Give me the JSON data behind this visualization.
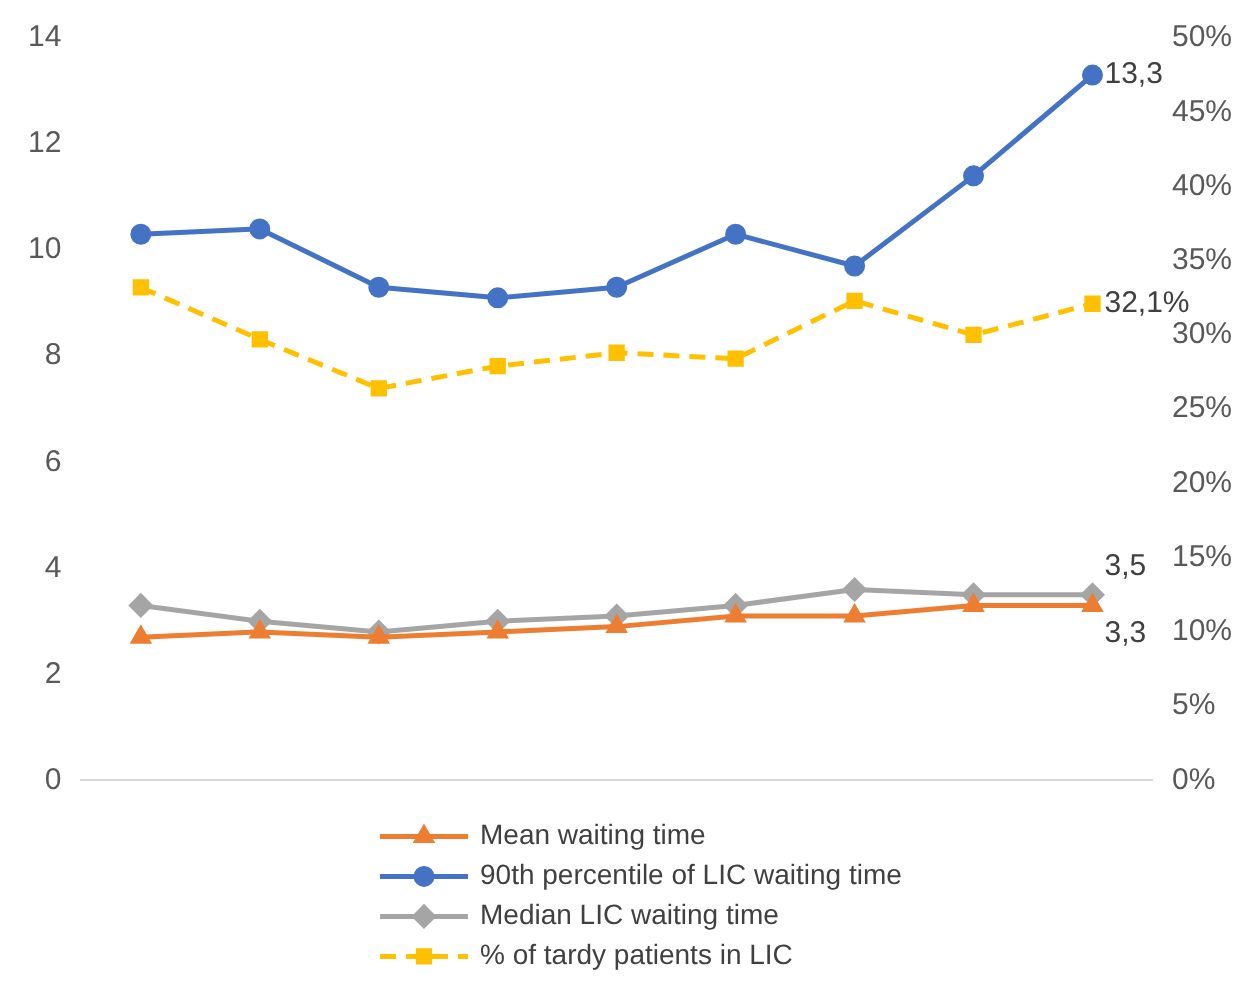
{
  "chart_data": {
    "type": "line",
    "categories": [
      null,
      null,
      null,
      null,
      null,
      null,
      null,
      null,
      null
    ],
    "series": [
      {
        "name": "Mean waiting time",
        "color": "#ed7d31",
        "marker": "triangle",
        "values": [
          2.7,
          2.8,
          2.7,
          2.8,
          2.9,
          3.1,
          3.1,
          3.3,
          3.3
        ],
        "value_labels": [
          null,
          null,
          null,
          null,
          null,
          null,
          null,
          null,
          "3,3"
        ]
      },
      {
        "name": "90th percentile of LIC waiting time",
        "color": "#4472c4",
        "marker": "circle",
        "values": [
          10.3,
          10.4,
          9.3,
          9.1,
          9.3,
          10.3,
          9.7,
          11.4,
          13.3
        ],
        "value_labels": [
          null,
          null,
          null,
          null,
          null,
          null,
          null,
          null,
          "13,3"
        ]
      },
      {
        "name": "Median LIC waiting time",
        "color": "#a5a5a5",
        "marker": "diamond",
        "values": [
          3.3,
          3.0,
          2.8,
          3.0,
          3.1,
          3.3,
          3.6,
          3.5,
          3.5
        ],
        "value_labels": [
          null,
          null,
          null,
          null,
          null,
          null,
          null,
          null,
          "3,5"
        ]
      },
      {
        "name": "% of tardy patients in LIC",
        "color": "#ffc000",
        "marker": "square",
        "line_style": "dashed",
        "axis": "y2",
        "values": [
          33.2,
          29.7,
          26.4,
          27.9,
          28.8,
          28.4,
          32.3,
          30.0,
          32.1
        ],
        "value_labels": [
          null,
          null,
          null,
          null,
          null,
          null,
          null,
          null,
          "32,1%"
        ]
      }
    ],
    "ylim": [
      0,
      14
    ],
    "yticks": [
      0,
      2,
      4,
      6,
      8,
      10,
      12,
      14
    ],
    "y2lim": [
      0,
      50
    ],
    "y2ticks": [
      {
        "value": 0,
        "label": "0%"
      },
      {
        "value": 5,
        "label": "5%"
      },
      {
        "value": 10,
        "label": "10%"
      },
      {
        "value": 15,
        "label": "15%"
      },
      {
        "value": 20,
        "label": "20%"
      },
      {
        "value": 25,
        "label": "25%"
      },
      {
        "value": 30,
        "label": "30%"
      },
      {
        "value": 35,
        "label": "35%"
      },
      {
        "value": 40,
        "label": "40%"
      },
      {
        "value": 45,
        "label": "45%"
      },
      {
        "value": 50,
        "label": "50%"
      }
    ],
    "grid": false,
    "legend": "bottom"
  }
}
